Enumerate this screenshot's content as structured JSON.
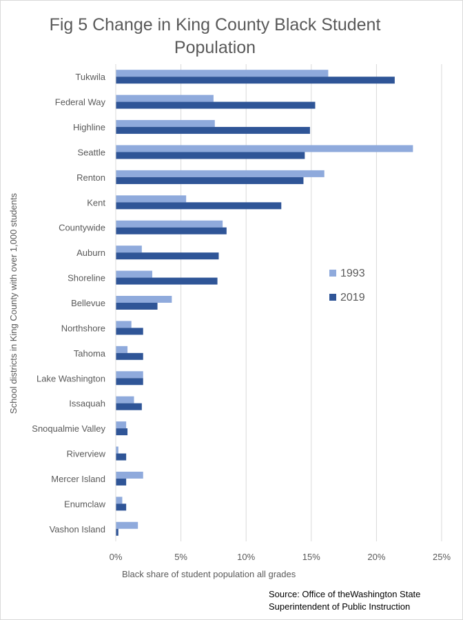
{
  "chart_data": {
    "type": "bar",
    "orientation": "horizontal",
    "title": "Fig 5 Change in King County Black Student Population",
    "xlabel": "Black share of student population  all grades",
    "ylabel": "School districts in King County with over 1,000 students",
    "categories": [
      "Tukwila",
      "Federal Way",
      "Highline",
      "Seattle",
      "Renton",
      "Kent",
      "Countywide",
      "Auburn",
      "Shoreline",
      "Bellevue",
      "Northshore",
      "Tahoma",
      "Lake Washington",
      "Issaquah",
      "Snoqualmie Valley",
      "Riverview",
      "Mercer Island",
      "Enumclaw",
      "Vashon Island"
    ],
    "series": [
      {
        "name": "1993",
        "color": "#8faadc",
        "values": [
          16.3,
          7.5,
          7.6,
          22.8,
          16.0,
          5.4,
          8.2,
          2.0,
          2.8,
          4.3,
          1.2,
          0.9,
          2.1,
          1.4,
          0.8,
          0.2,
          2.1,
          0.5,
          1.7
        ]
      },
      {
        "name": "2019",
        "color": "#2f5597",
        "values": [
          21.4,
          15.3,
          14.9,
          14.5,
          14.4,
          12.7,
          8.5,
          7.9,
          7.8,
          3.2,
          2.1,
          2.1,
          2.1,
          2.0,
          0.9,
          0.8,
          0.8,
          0.8,
          0.2
        ]
      }
    ],
    "xlim": [
      0,
      25
    ],
    "xticks": [
      "0%",
      "5%",
      "10%",
      "15%",
      "20%",
      "25%"
    ],
    "grid": true,
    "legend": "right"
  },
  "source": "Source: Office of theWashington State\nSuperintendent of Public Instruction"
}
